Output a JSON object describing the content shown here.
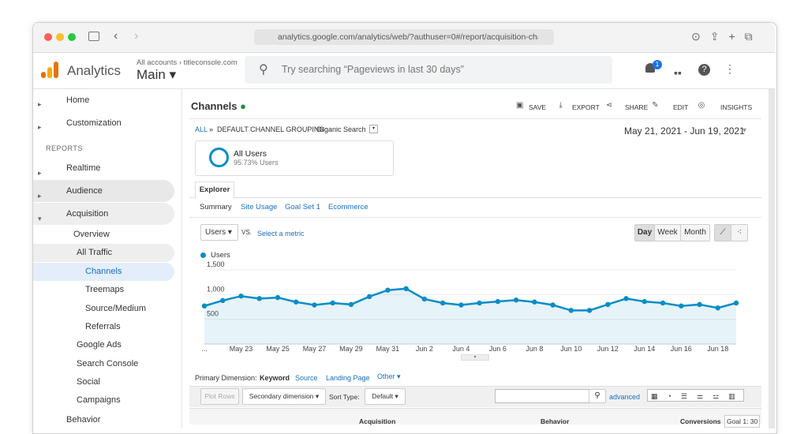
{
  "browser": {
    "url": "analytics.google.com/analytics/web/?authuser=0#/report/acquisition-chan"
  },
  "header": {
    "product": "Analytics",
    "breadcrumb": "All accounts › titleconsole.com",
    "view": "Main",
    "search_placeholder": "Try searching “Pageviews in last 30 days”",
    "notifications": "1"
  },
  "sidebar": {
    "items": [
      "Home",
      "Customization",
      "REPORTS",
      "Realtime",
      "Audience",
      "Acquisition",
      "Overview",
      "All Traffic",
      "Channels",
      "Treemaps",
      "Source/Medium",
      "Referrals",
      "Google Ads",
      "Search Console",
      "Social",
      "Campaigns",
      "Behavior"
    ]
  },
  "report": {
    "title": "Channels",
    "actions": [
      "SAVE",
      "EXPORT",
      "SHARE",
      "EDIT",
      "INSIGHTS"
    ],
    "breadcrumb": {
      "all": "ALL",
      "sep": "»",
      "grouping": "DEFAULT CHANNEL GROUPING:",
      "value": "Organic Search"
    },
    "date_range": "May 21, 2021 - Jun 19, 2021",
    "segment": {
      "name": "All Users",
      "detail": "95.73% Users"
    },
    "tab": "Explorer",
    "subtabs": [
      "Summary",
      "Site Usage",
      "Goal Set 1",
      "Ecommerce"
    ],
    "metric": "Users",
    "vs": "VS.",
    "select_metric": "Select a metric",
    "periods": [
      "Day",
      "Week",
      "Month"
    ],
    "primary_dimension": {
      "label": "Primary Dimension:",
      "options": [
        "Keyword",
        "Source",
        "Landing Page",
        "Other"
      ]
    },
    "controls": {
      "plot_rows": "Plot Rows",
      "secondary": "Secondary dimension",
      "sort_label": "Sort Type:",
      "sort": "Default",
      "advanced": "advanced"
    },
    "table_header": [
      "Acquisition",
      "Behavior",
      "Conversions",
      "Goal 1: 30"
    ]
  },
  "chart_data": {
    "type": "line",
    "categories": [
      "...",
      null,
      "May 23",
      null,
      "May 25",
      null,
      "May 27",
      null,
      "May 29",
      null,
      "May 31",
      null,
      "Jun 2",
      null,
      "Jun 4",
      null,
      "Jun 6",
      null,
      "Jun 8",
      null,
      "Jun 10",
      null,
      "Jun 12",
      null,
      "Jun 14",
      null,
      "Jun 16",
      null,
      "Jun 18",
      null
    ],
    "series": [
      {
        "name": "Users",
        "color": "#058dc7",
        "values": [
          770,
          880,
          970,
          920,
          940,
          850,
          790,
          830,
          800,
          960,
          1090,
          1120,
          910,
          830,
          790,
          830,
          860,
          890,
          850,
          790,
          680,
          680,
          800,
          920,
          860,
          830,
          770,
          800,
          730,
          830
        ]
      }
    ],
    "ylim": [
      0,
      1500
    ],
    "yticks": [
      500,
      {
        "value": 1000,
        "label": "1,000"
      },
      {
        "value": 1500,
        "label": "1,500"
      }
    ],
    "grid": true
  }
}
